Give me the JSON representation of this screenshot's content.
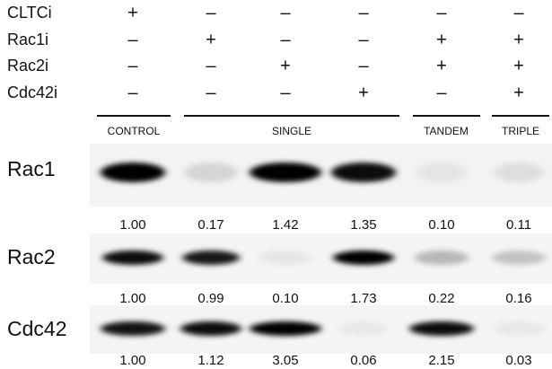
{
  "treatments": [
    {
      "label": "CLTCi",
      "signs": [
        "+",
        "–",
        "–",
        "–",
        "–",
        "–"
      ]
    },
    {
      "label": "Rac1i",
      "signs": [
        "–",
        "+",
        "–",
        "–",
        "+",
        "+"
      ]
    },
    {
      "label": "Rac2i",
      "signs": [
        "–",
        "–",
        "+",
        "–",
        "+",
        "+"
      ]
    },
    {
      "label": "Cdc42i",
      "signs": [
        "–",
        "–",
        "–",
        "+",
        "–",
        "+"
      ]
    }
  ],
  "groups": [
    "CONTROL",
    "SINGLE",
    "TANDEM",
    "TRIPLE"
  ],
  "blots": [
    {
      "label": "Rac1",
      "quantification": [
        "1.00",
        "0.17",
        "1.42",
        "1.35",
        "0.10",
        "0.11"
      ]
    },
    {
      "label": "Rac2",
      "quantification": [
        "1.00",
        "0.99",
        "0.10",
        "1.73",
        "0.22",
        "0.16"
      ]
    },
    {
      "label": "Cdc42",
      "quantification": [
        "1.00",
        "1.12",
        "3.05",
        "0.06",
        "2.15",
        "0.03"
      ]
    }
  ]
}
